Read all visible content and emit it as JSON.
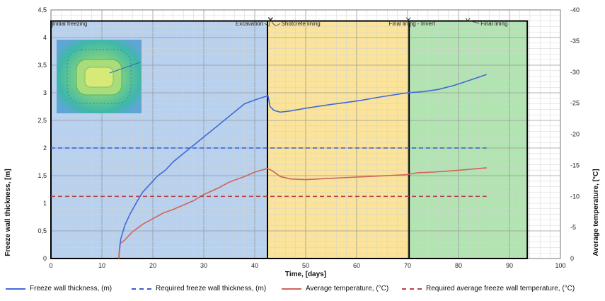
{
  "chart_data": {
    "type": "line",
    "xlabel": "Time, [days]",
    "ylabel_left": "Freeze wall thickness, [m]",
    "ylabel_right": "Average temperature, [°C]",
    "xlim": [
      0,
      100
    ],
    "ylim_left": [
      0,
      4.5
    ],
    "ylim_right": [
      0,
      -40
    ],
    "x_ticks": [
      "0",
      "10",
      "20",
      "30",
      "40",
      "50",
      "60",
      "70",
      "80",
      "90",
      "100"
    ],
    "y_left_ticks": [
      "0",
      "0,5",
      "1",
      "1,5",
      "2",
      "2,5",
      "3",
      "3,5",
      "4",
      "4,5"
    ],
    "y_right_ticks": [
      "0",
      "-5",
      "-10",
      "-15",
      "-20",
      "-25",
      "-30",
      "-35",
      "-40"
    ],
    "grid": true,
    "phases": [
      {
        "name": "Initial freezing",
        "x_start": 0,
        "x_end": 42.5,
        "color": "#b8d1ee"
      },
      {
        "name": "Shotcrete lining",
        "x_start": 42.5,
        "x_end": 70.3,
        "color": "#fbe49a"
      },
      {
        "name": "Final lining",
        "x_start": 70.3,
        "x_end": 93.5,
        "color": "#b2e4b2"
      }
    ],
    "annotations": [
      {
        "text": "Initial freezing",
        "x": 0
      },
      {
        "text": "Excavation",
        "x": 42.5
      },
      {
        "text": "Shotcrete lining",
        "x": 43
      },
      {
        "text": "Final lining - Invert",
        "x": 70.3
      },
      {
        "text": "Final lining",
        "x": 81
      }
    ],
    "series": [
      {
        "name": "Freeze wall thickness, (m)",
        "axis": "left",
        "color": "#4169d8",
        "style": "solid",
        "points": [
          [
            13.3,
            0
          ],
          [
            13.7,
            0.35
          ],
          [
            14.5,
            0.6
          ],
          [
            15.5,
            0.8
          ],
          [
            17,
            1.05
          ],
          [
            18,
            1.2
          ],
          [
            20,
            1.4
          ],
          [
            21,
            1.5
          ],
          [
            22.5,
            1.6
          ],
          [
            24,
            1.75
          ],
          [
            26,
            1.9
          ],
          [
            28,
            2.05
          ],
          [
            30,
            2.2
          ],
          [
            32,
            2.35
          ],
          [
            34,
            2.5
          ],
          [
            36,
            2.65
          ],
          [
            38,
            2.8
          ],
          [
            40,
            2.87
          ],
          [
            42,
            2.93
          ],
          [
            42.6,
            2.95
          ],
          [
            43,
            2.75
          ],
          [
            43.8,
            2.68
          ],
          [
            45,
            2.65
          ],
          [
            47,
            2.67
          ],
          [
            50,
            2.72
          ],
          [
            55,
            2.79
          ],
          [
            60,
            2.85
          ],
          [
            65,
            2.93
          ],
          [
            70,
            3.0
          ],
          [
            73,
            3.02
          ],
          [
            76,
            3.06
          ],
          [
            79,
            3.13
          ],
          [
            82,
            3.22
          ],
          [
            85.5,
            3.33
          ]
        ]
      },
      {
        "name": "Required freeze wall thickness, (m)",
        "axis": "left",
        "color": "#3a5bd0",
        "style": "dashed",
        "points": [
          [
            0,
            2.0
          ],
          [
            85.5,
            2.0
          ]
        ]
      },
      {
        "name": "Average temperature, (°C)",
        "axis": "right",
        "color": "#d0645a",
        "style": "solid",
        "points": [
          [
            13.3,
            0
          ],
          [
            13.5,
            -2.3
          ],
          [
            14.5,
            -3
          ],
          [
            16,
            -4.3
          ],
          [
            18,
            -5.5
          ],
          [
            20,
            -6.4
          ],
          [
            22,
            -7.3
          ],
          [
            24,
            -7.9
          ],
          [
            26,
            -8.6
          ],
          [
            28,
            -9.3
          ],
          [
            30,
            -10.3
          ],
          [
            33,
            -11.4
          ],
          [
            35,
            -12.3
          ],
          [
            38,
            -13.2
          ],
          [
            40,
            -13.9
          ],
          [
            42.5,
            -14.5
          ],
          [
            43.5,
            -14.1
          ],
          [
            45,
            -13.2
          ],
          [
            47,
            -12.8
          ],
          [
            50,
            -12.7
          ],
          [
            55,
            -12.9
          ],
          [
            60,
            -13.1
          ],
          [
            65,
            -13.3
          ],
          [
            70,
            -13.5
          ],
          [
            72,
            -13.8
          ],
          [
            75,
            -13.9
          ],
          [
            80,
            -14.2
          ],
          [
            85.5,
            -14.6
          ]
        ]
      },
      {
        "name": "Required average freeze wall temperature, (°C)",
        "axis": "right",
        "color": "#b3424a",
        "style": "dashed",
        "points": [
          [
            0,
            -10
          ],
          [
            85.5,
            -10
          ]
        ]
      }
    ]
  },
  "inset": {
    "description_icon": "freeze-wall-cross-section-thumbnail"
  }
}
